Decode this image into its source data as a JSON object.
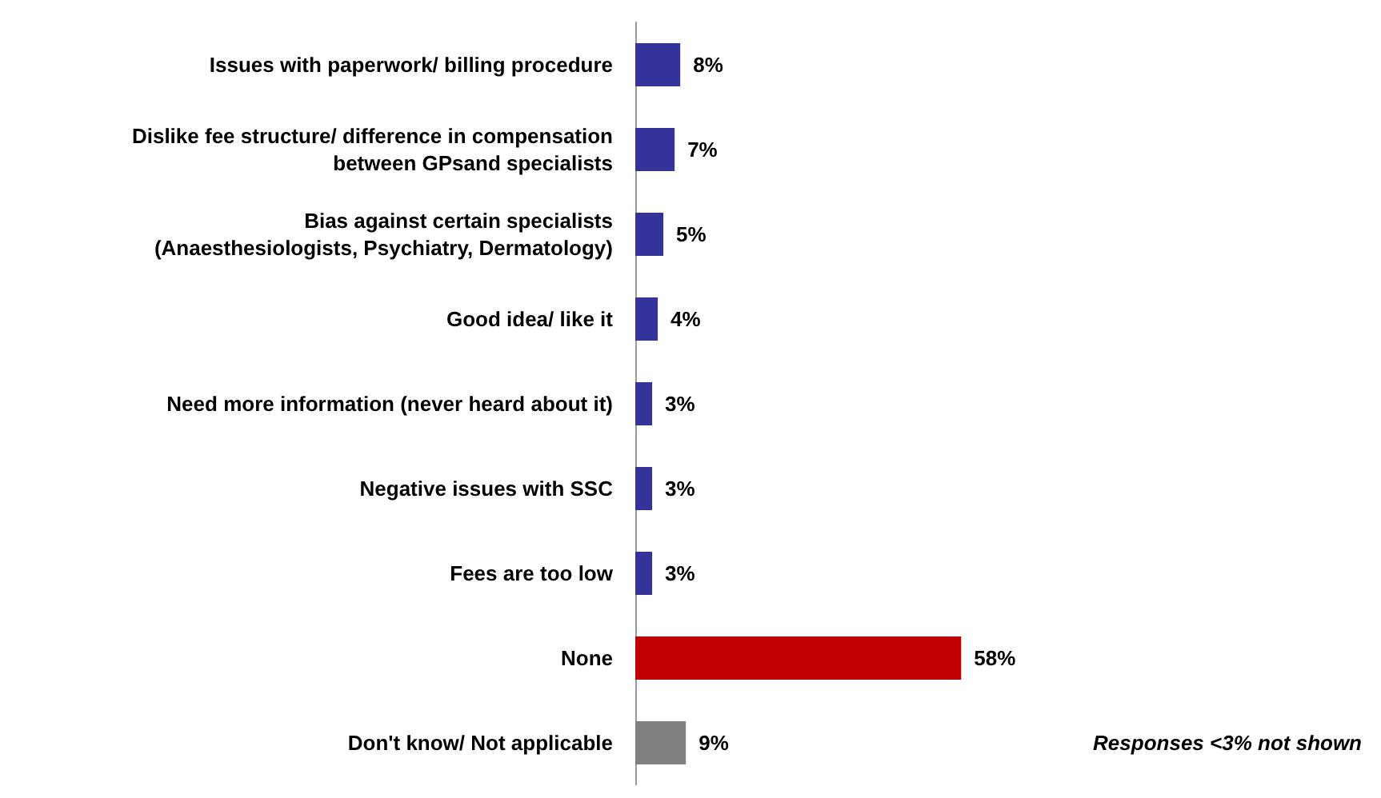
{
  "chart_data": {
    "type": "bar",
    "orientation": "horizontal",
    "categories": [
      "Issues with paperwork/ billing procedure",
      "Dislike fee structure/ difference in compensation\nbetween GPsand specialists",
      "Bias against certain specialists\n(Anaesthesiologists, Psychiatry, Dermatology)",
      "Good idea/ like it",
      "Need more information (never heard about it)",
      "Negative issues with SSC",
      "Fees are too low",
      "None",
      "Don't know/ Not applicable"
    ],
    "values": [
      8,
      7,
      5,
      4,
      3,
      3,
      3,
      58,
      9
    ],
    "colors": [
      "#333399",
      "#333399",
      "#333399",
      "#333399",
      "#333399",
      "#333399",
      "#333399",
      "#c00000",
      "#808080"
    ],
    "value_labels": [
      "8%",
      "7%",
      "5%",
      "4%",
      "3%",
      "3%",
      "3%",
      "58%",
      "9%"
    ],
    "annotations": [
      "Responses <3% not shown"
    ]
  }
}
